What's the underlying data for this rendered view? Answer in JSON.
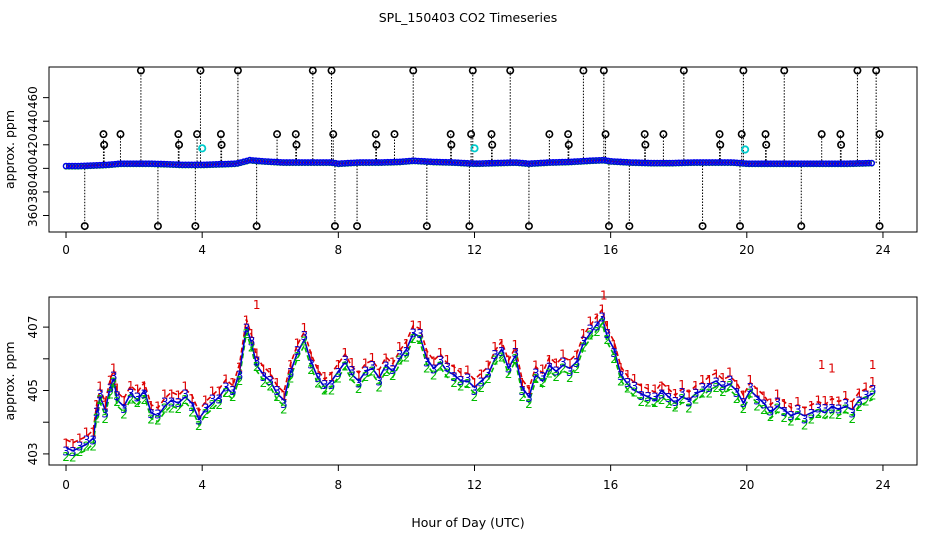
{
  "chart_data": [
    {
      "type": "scatter",
      "panel": "top",
      "title": "SPL_150403  CO2 Timeseries",
      "xlabel": "",
      "ylabel": "approx. ppm",
      "xlim": [
        -0.5,
        25
      ],
      "ylim": [
        346,
        486
      ],
      "xticks": [
        0,
        4,
        8,
        12,
        16,
        20,
        24
      ],
      "yticks": [
        380,
        420,
        460
      ],
      "yticks_secondary": [
        360,
        400,
        440
      ],
      "baseline": [
        [
          0.0,
          402
        ],
        [
          0.4,
          402
        ],
        [
          0.8,
          402.5
        ],
        [
          1.2,
          403
        ],
        [
          1.6,
          404
        ],
        [
          2.0,
          404
        ],
        [
          2.5,
          404
        ],
        [
          3.0,
          403.5
        ],
        [
          3.4,
          403
        ],
        [
          3.8,
          403
        ],
        [
          4.0,
          403
        ],
        [
          4.5,
          403.5
        ],
        [
          5.0,
          404
        ],
        [
          5.4,
          407
        ],
        [
          5.8,
          406
        ],
        [
          6.4,
          405
        ],
        [
          7.0,
          405
        ],
        [
          7.4,
          405
        ],
        [
          7.8,
          405
        ],
        [
          8.0,
          404
        ],
        [
          8.6,
          405
        ],
        [
          9.2,
          405
        ],
        [
          9.8,
          405.5
        ],
        [
          10.2,
          406.5
        ],
        [
          10.8,
          405.5
        ],
        [
          11.4,
          405
        ],
        [
          12.0,
          404
        ],
        [
          12.6,
          404.5
        ],
        [
          13.2,
          405
        ],
        [
          13.6,
          404
        ],
        [
          14.2,
          405
        ],
        [
          14.8,
          405.5
        ],
        [
          15.4,
          406.5
        ],
        [
          15.8,
          407
        ],
        [
          16.0,
          406
        ],
        [
          16.6,
          405
        ],
        [
          17.2,
          404.5
        ],
        [
          17.8,
          404.5
        ],
        [
          18.4,
          405
        ],
        [
          19.0,
          405
        ],
        [
          19.6,
          405
        ],
        [
          20.0,
          404
        ],
        [
          20.6,
          404
        ],
        [
          21.2,
          404
        ],
        [
          21.8,
          404
        ],
        [
          22.4,
          404
        ],
        [
          23.0,
          404
        ],
        [
          23.6,
          404.5
        ]
      ],
      "cal_high_times": [
        2.2,
        3.95,
        5.05,
        7.25,
        7.8,
        10.2,
        11.95,
        13.05,
        15.2,
        15.8,
        18.15,
        19.9,
        21.1,
        23.25,
        23.8
      ],
      "cal_mid_times": [
        1.1,
        1.6,
        3.3,
        3.85,
        4.55,
        6.2,
        6.75,
        7.85,
        9.1,
        9.65,
        11.3,
        11.9,
        12.5,
        14.2,
        14.75,
        15.85,
        17.0,
        17.55,
        19.2,
        19.85,
        20.55,
        22.2,
        22.75,
        23.9
      ],
      "cal_low_times": [
        0.55,
        2.7,
        3.8,
        5.6,
        7.9,
        8.55,
        10.6,
        11.85,
        13.6,
        15.95,
        16.55,
        18.7,
        19.8,
        21.6,
        23.9
      ],
      "cyan_points": [
        [
          4.0,
          417
        ],
        [
          12.0,
          417
        ],
        [
          19.95,
          416
        ]
      ],
      "levels": {
        "high": 483,
        "mid": 429,
        "mid_lower": 420,
        "low": 351
      }
    },
    {
      "type": "line",
      "panel": "bottom",
      "title": "",
      "xlabel": "Hour of Day (UTC)",
      "ylabel": "approx. ppm",
      "xlim": [
        -0.5,
        25
      ],
      "ylim": [
        402.65,
        407.95
      ],
      "xticks": [
        0,
        4,
        8,
        12,
        16,
        20,
        24
      ],
      "yticks": [
        403,
        405,
        407
      ],
      "series": [
        {
          "name": "1",
          "color": "#dd0000"
        },
        {
          "name": "2",
          "color": "#00bb00"
        },
        {
          "name": "3",
          "color": "#0000cc"
        }
      ],
      "points": [
        [
          0.0,
          403.2
        ],
        [
          0.2,
          403.1
        ],
        [
          0.4,
          403.2
        ],
        [
          0.6,
          403.3
        ],
        [
          0.8,
          403.5
        ],
        [
          0.9,
          404.3
        ],
        [
          1.0,
          404.8
        ],
        [
          1.15,
          404.4
        ],
        [
          1.3,
          405.1
        ],
        [
          1.4,
          405.4
        ],
        [
          1.5,
          404.7
        ],
        [
          1.7,
          404.5
        ],
        [
          1.9,
          404.9
        ],
        [
          2.1,
          404.7
        ],
        [
          2.3,
          405.0
        ],
        [
          2.5,
          404.3
        ],
        [
          2.7,
          404.2
        ],
        [
          2.9,
          404.5
        ],
        [
          3.1,
          404.7
        ],
        [
          3.3,
          404.6
        ],
        [
          3.5,
          404.8
        ],
        [
          3.7,
          404.6
        ],
        [
          3.9,
          404.1
        ],
        [
          4.1,
          404.4
        ],
        [
          4.3,
          404.6
        ],
        [
          4.5,
          404.8
        ],
        [
          4.7,
          405.1
        ],
        [
          4.9,
          404.9
        ],
        [
          5.1,
          405.6
        ],
        [
          5.3,
          407.0
        ],
        [
          5.45,
          406.5
        ],
        [
          5.6,
          405.8
        ],
        [
          5.8,
          405.5
        ],
        [
          6.0,
          405.3
        ],
        [
          6.2,
          404.9
        ],
        [
          6.4,
          404.7
        ],
        [
          6.6,
          405.6
        ],
        [
          6.8,
          406.2
        ],
        [
          7.0,
          406.6
        ],
        [
          7.2,
          405.9
        ],
        [
          7.4,
          405.4
        ],
        [
          7.6,
          405.1
        ],
        [
          7.8,
          405.3
        ],
        [
          8.0,
          405.6
        ],
        [
          8.2,
          405.9
        ],
        [
          8.4,
          405.5
        ],
        [
          8.6,
          405.3
        ],
        [
          8.8,
          405.6
        ],
        [
          9.0,
          405.7
        ],
        [
          9.2,
          405.4
        ],
        [
          9.4,
          405.8
        ],
        [
          9.6,
          405.6
        ],
        [
          9.8,
          406.0
        ],
        [
          10.0,
          406.3
        ],
        [
          10.2,
          406.8
        ],
        [
          10.4,
          406.7
        ],
        [
          10.6,
          406.0
        ],
        [
          10.8,
          405.7
        ],
        [
          11.0,
          405.9
        ],
        [
          11.2,
          405.6
        ],
        [
          11.4,
          405.5
        ],
        [
          11.6,
          405.3
        ],
        [
          11.8,
          405.3
        ],
        [
          12.0,
          405.1
        ],
        [
          12.2,
          405.3
        ],
        [
          12.4,
          405.5
        ],
        [
          12.6,
          406.0
        ],
        [
          12.8,
          406.3
        ],
        [
          13.0,
          405.7
        ],
        [
          13.2,
          406.1
        ],
        [
          13.4,
          405.1
        ],
        [
          13.6,
          404.8
        ],
        [
          13.8,
          405.5
        ],
        [
          14.0,
          405.3
        ],
        [
          14.2,
          405.8
        ],
        [
          14.4,
          405.6
        ],
        [
          14.6,
          405.8
        ],
        [
          14.8,
          405.7
        ],
        [
          15.0,
          405.9
        ],
        [
          15.2,
          406.5
        ],
        [
          15.4,
          406.8
        ],
        [
          15.6,
          407.1
        ],
        [
          15.75,
          407.3
        ],
        [
          15.9,
          406.7
        ],
        [
          16.1,
          406.3
        ],
        [
          16.3,
          405.5
        ],
        [
          16.5,
          405.2
        ],
        [
          16.7,
          405.0
        ],
        [
          16.9,
          404.9
        ],
        [
          17.1,
          404.8
        ],
        [
          17.3,
          404.7
        ],
        [
          17.5,
          405.0
        ],
        [
          17.7,
          404.8
        ],
        [
          17.9,
          404.6
        ],
        [
          18.1,
          404.8
        ],
        [
          18.3,
          404.7
        ],
        [
          18.5,
          404.9
        ],
        [
          18.7,
          405.0
        ],
        [
          18.9,
          405.2
        ],
        [
          19.1,
          405.3
        ],
        [
          19.3,
          405.1
        ],
        [
          19.5,
          405.2
        ],
        [
          19.7,
          405.0
        ],
        [
          19.9,
          404.6
        ],
        [
          20.1,
          405.0
        ],
        [
          20.3,
          404.8
        ],
        [
          20.5,
          404.6
        ],
        [
          20.7,
          404.3
        ],
        [
          20.9,
          404.5
        ],
        [
          21.1,
          404.4
        ],
        [
          21.3,
          404.2
        ],
        [
          21.5,
          404.3
        ],
        [
          21.7,
          404.2
        ],
        [
          21.9,
          404.3
        ],
        [
          22.1,
          404.4
        ],
        [
          22.3,
          404.3
        ],
        [
          22.5,
          404.5
        ],
        [
          22.7,
          404.4
        ],
        [
          22.9,
          404.5
        ],
        [
          23.1,
          404.4
        ],
        [
          23.3,
          404.7
        ],
        [
          23.5,
          404.8
        ],
        [
          23.7,
          404.9
        ]
      ],
      "offsets": {
        "1": 0.25,
        "2": -0.18,
        "3": 0.0
      },
      "extra_spikes": [
        [
          5.6,
          407.7
        ],
        [
          22.2,
          405.8
        ],
        [
          22.5,
          405.7
        ],
        [
          23.7,
          405.8
        ],
        [
          15.8,
          408.0
        ]
      ]
    }
  ]
}
